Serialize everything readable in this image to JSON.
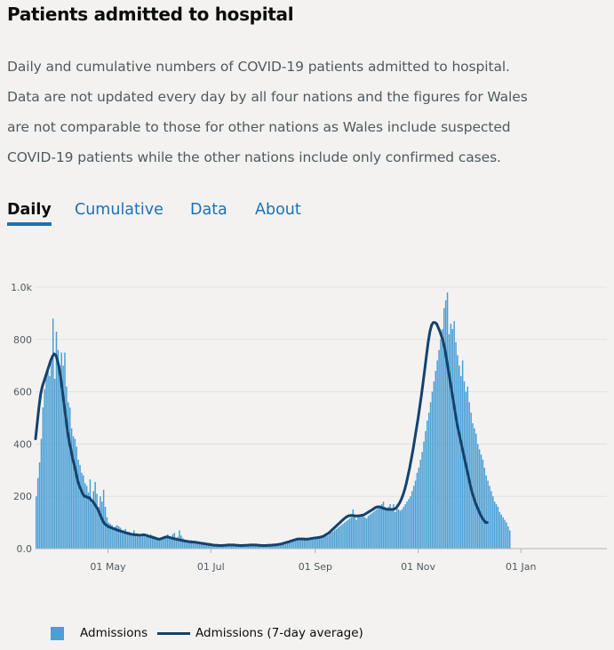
{
  "page": {
    "title": "Patients admitted to hospital",
    "description": [
      "Daily and cumulative numbers of COVID-19 patients admitted to hospital.",
      "Data are not updated every day by all four nations and the figures for Wales",
      "are not comparable to those for other nations as Wales include suspected",
      "COVID-19 patients while the other nations include only confirmed cases."
    ]
  },
  "tabs": [
    {
      "label": "Daily",
      "active": true
    },
    {
      "label": "Cumulative",
      "active": false
    },
    {
      "label": "Data",
      "active": false
    },
    {
      "label": "About",
      "active": false
    }
  ],
  "legend": {
    "bars_label": "Admissions",
    "line_label": "Admissions (7-day average)"
  },
  "colors": {
    "bars": "#4a9fd5",
    "line": "#12436d",
    "grid": "#e1e1e1",
    "axis_text": "#505a5f",
    "tab_link": "#1d70b8"
  },
  "chart_data": {
    "type": "bar",
    "title": "",
    "xlabel": "",
    "ylabel": "",
    "ylim": [
      0,
      1000
    ],
    "y_ticks": [
      0,
      200,
      400,
      600,
      800,
      1000
    ],
    "y_tick_labels": [
      "0.0",
      "200",
      "400",
      "600",
      "800",
      "1.0k"
    ],
    "x_range": [
      "2020-03-19",
      "2021-02-21"
    ],
    "x_ticks": [
      "2020-05-01",
      "2020-07-01",
      "2020-09-01",
      "2020-11-01",
      "2021-01-01"
    ],
    "x_tick_labels": [
      "01 May",
      "01 Jul",
      "01 Sep",
      "01 Nov",
      "01 Jan"
    ],
    "grid": true,
    "legend_position": "bottom",
    "series": [
      {
        "name": "Admissions",
        "kind": "bar",
        "start": "2020-03-19",
        "values": [
          200,
          270,
          330,
          420,
          540,
          610,
          660,
          680,
          660,
          720,
          880,
          650,
          830,
          760,
          700,
          750,
          700,
          750,
          620,
          560,
          540,
          460,
          430,
          420,
          390,
          340,
          320,
          290,
          280,
          250,
          240,
          215,
          265,
          175,
          220,
          255,
          210,
          160,
          200,
          180,
          225,
          160,
          120,
          100,
          95,
          90,
          80,
          85,
          90,
          85,
          80,
          70,
          70,
          75,
          65,
          65,
          60,
          55,
          70,
          55,
          50,
          50,
          45,
          55,
          50,
          45,
          55,
          50,
          55,
          50,
          48,
          45,
          40,
          40,
          35,
          42,
          40,
          50,
          55,
          45,
          45,
          55,
          60,
          40,
          45,
          70,
          50,
          40,
          35,
          30,
          28,
          30,
          32,
          30,
          30,
          28,
          28,
          25,
          25,
          25,
          22,
          22,
          20,
          22,
          20,
          18,
          18,
          16,
          15,
          15,
          15,
          15,
          14,
          14,
          14,
          14,
          14,
          14,
          14,
          13,
          12,
          12,
          12,
          14,
          16,
          15,
          16,
          16,
          15,
          15,
          15,
          14,
          13,
          13,
          12,
          12,
          12,
          14,
          13,
          12,
          12,
          14,
          15,
          16,
          16,
          17,
          18,
          18,
          19,
          20,
          22,
          25,
          28,
          30,
          32,
          34,
          36,
          38,
          38,
          40,
          38,
          36,
          38,
          40,
          40,
          42,
          40,
          42,
          40,
          44,
          44,
          45,
          48,
          50,
          55,
          60,
          65,
          70,
          75,
          80,
          85,
          90,
          95,
          100,
          105,
          110,
          115,
          120,
          150,
          130,
          110,
          120,
          130,
          125,
          130,
          120,
          115,
          125,
          130,
          135,
          140,
          145,
          150,
          155,
          160,
          170,
          180,
          160,
          150,
          160,
          170,
          150,
          170,
          140,
          160,
          150,
          145,
          150,
          160,
          170,
          180,
          190,
          200,
          220,
          240,
          260,
          290,
          310,
          340,
          370,
          410,
          450,
          490,
          520,
          560,
          600,
          640,
          680,
          720,
          760,
          800,
          840,
          920,
          950,
          980,
          820,
          860,
          840,
          870,
          790,
          740,
          700,
          660,
          720,
          640,
          600,
          620,
          560,
          520,
          480,
          460,
          440,
          400,
          380,
          360,
          340,
          310,
          280,
          260,
          240,
          220,
          200,
          180,
          170,
          160,
          140,
          130,
          120,
          110,
          100,
          85,
          70
        ]
      },
      {
        "name": "Admissions (7-day average)",
        "kind": "line",
        "start": "2020-03-19",
        "values": [
          420,
          480,
          540,
          590,
          620,
          640,
          660,
          680,
          700,
          720,
          735,
          745,
          740,
          720,
          690,
          650,
          600,
          550,
          500,
          450,
          410,
          380,
          345,
          320,
          290,
          260,
          240,
          225,
          210,
          200,
          200,
          195,
          195,
          185,
          180,
          170,
          160,
          150,
          135,
          120,
          105,
          95,
          90,
          85,
          82,
          80,
          77,
          75,
          72,
          70,
          68,
          66,
          64,
          62,
          60,
          58,
          56,
          55,
          54,
          53,
          53,
          52,
          51,
          52,
          53,
          52,
          50,
          48,
          46,
          44,
          42,
          40,
          38,
          36,
          37,
          39,
          42,
          44,
          45,
          44,
          42,
          40,
          38,
          37,
          35,
          34,
          33,
          31,
          30,
          29,
          28,
          27,
          26,
          25,
          25,
          24,
          23,
          22,
          21,
          20,
          19,
          18,
          17,
          16,
          15,
          14,
          13,
          13,
          13,
          12,
          12,
          12,
          13,
          13,
          14,
          14,
          14,
          14,
          14,
          13,
          13,
          12,
          12,
          12,
          13,
          13,
          13,
          14,
          14,
          14,
          14,
          14,
          13,
          13,
          12,
          12,
          12,
          12,
          13,
          13,
          13,
          14,
          14,
          15,
          16,
          17,
          18,
          20,
          22,
          24,
          26,
          28,
          30,
          32,
          34,
          36,
          37,
          37,
          37,
          37,
          36,
          36,
          37,
          38,
          39,
          40,
          41,
          42,
          43,
          44,
          46,
          48,
          52,
          56,
          60,
          66,
          72,
          78,
          84,
          90,
          96,
          102,
          108,
          114,
          119,
          123,
          126,
          127,
          127,
          126,
          125,
          125,
          126,
          127,
          128,
          130,
          134,
          138,
          142,
          146,
          150,
          154,
          158,
          160,
          160,
          158,
          155,
          153,
          151,
          150,
          150,
          150,
          150,
          152,
          156,
          165,
          175,
          188,
          205,
          225,
          250,
          280,
          310,
          345,
          380,
          420,
          460,
          500,
          545,
          590,
          640,
          690,
          740,
          790,
          830,
          855,
          865,
          865,
          860,
          845,
          830,
          810,
          790,
          760,
          720,
          680,
          640,
          600,
          560,
          520,
          480,
          450,
          420,
          390,
          360,
          330,
          300,
          270,
          240,
          215,
          195,
          175,
          160,
          145,
          130,
          118,
          108,
          100,
          100
        ]
      }
    ]
  }
}
